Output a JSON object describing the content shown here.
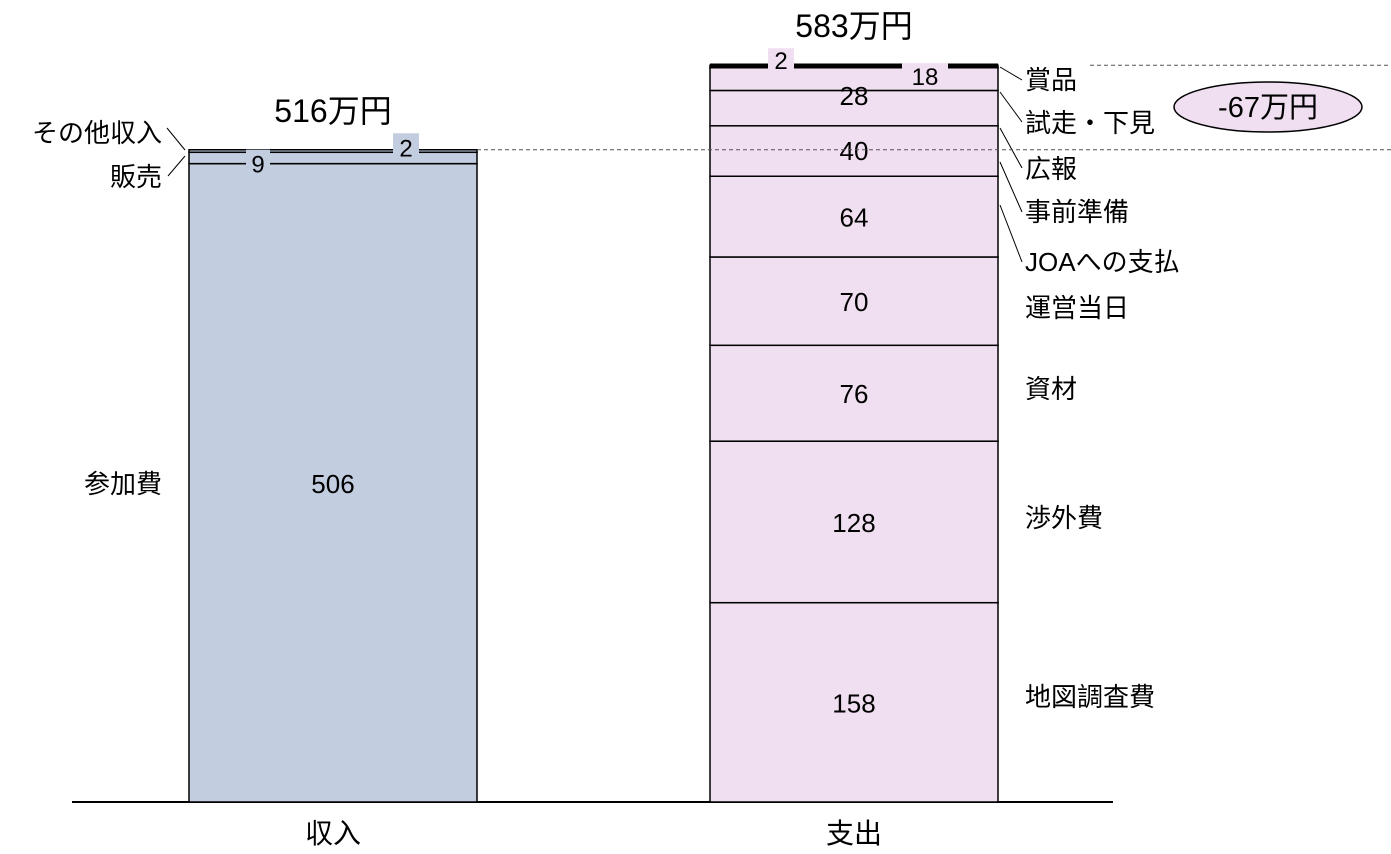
{
  "chart_data": {
    "type": "bar",
    "stacked": true,
    "categories": [
      "収入",
      "支出"
    ],
    "income": {
      "category": "収入",
      "total_label": "516万円",
      "color": "#c3cde0",
      "segments": [
        {
          "name": "参加費",
          "value": 506
        },
        {
          "name": "販売",
          "value": 9
        },
        {
          "name": "その他収入",
          "value": 2
        }
      ]
    },
    "expense": {
      "category": "支出",
      "total_label": "583万円",
      "color": "#f0dff0",
      "segments": [
        {
          "name": "地図調査費",
          "value": 158
        },
        {
          "name": "渉外費",
          "value": 128
        },
        {
          "name": "資材",
          "value": 76
        },
        {
          "name": "運営当日",
          "value": 70
        },
        {
          "name": "JOAへの支払",
          "value": 64
        },
        {
          "name": "事前準備",
          "value": 40
        },
        {
          "name": "広報",
          "value": 28
        },
        {
          "name": "試走・下見",
          "value": 18
        },
        {
          "name": "賞品",
          "value": 2
        }
      ]
    },
    "difference_label": "-67万円",
    "difference_color": "#f0dff0"
  }
}
